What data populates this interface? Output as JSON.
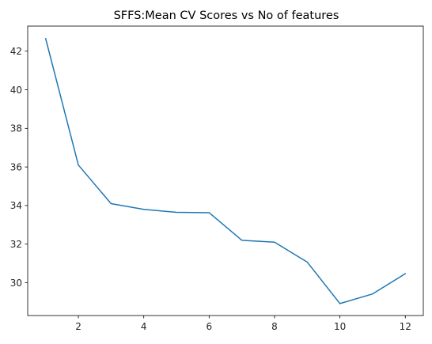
{
  "chart_data": {
    "type": "line",
    "title": "SFFS:Mean CV Scores vs No of features",
    "xlabel": "",
    "ylabel": "",
    "xlim": [
      0.45,
      12.55
    ],
    "ylim": [
      28.3,
      43.3
    ],
    "x_ticks": [
      2,
      4,
      6,
      8,
      10,
      12
    ],
    "y_ticks": [
      30,
      32,
      34,
      36,
      38,
      40,
      42
    ],
    "grid": false,
    "series": [
      {
        "color": "#1f77b4",
        "x": [
          1,
          2,
          3,
          4,
          5,
          6,
          7,
          8,
          9,
          10,
          11,
          12
        ],
        "y": [
          42.65,
          36.1,
          34.1,
          33.8,
          33.65,
          33.63,
          32.2,
          32.1,
          31.07,
          28.92,
          29.42,
          30.47
        ]
      }
    ]
  }
}
